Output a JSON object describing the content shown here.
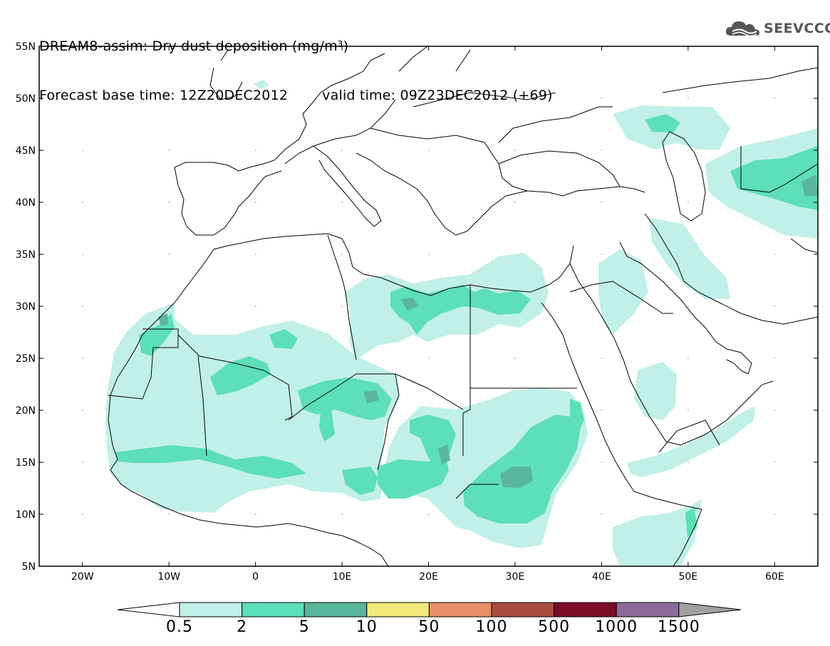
{
  "title": {
    "line1": "DREAM8-assim: Dry dust deposition (mg/m³)",
    "base_time_label": "Forecast base time: 12Z20DEC2012",
    "valid_time_label": "valid time: 09Z23DEC2012 (+69)"
  },
  "logo": {
    "text": "SEEVCCC",
    "icon": "cloud-icon"
  },
  "map": {
    "lat_labels": [
      "55N",
      "50N",
      "45N",
      "40N",
      "35N",
      "30N",
      "25N",
      "20N",
      "15N",
      "10N",
      "5N"
    ],
    "lon_labels": [
      "20W",
      "10W",
      "0",
      "10E",
      "20E",
      "30E",
      "40E",
      "50E",
      "60E"
    ],
    "extent": {
      "lon_min": -25,
      "lon_max": 65,
      "lat_min": 5,
      "lat_max": 55
    }
  },
  "colorbar": {
    "labels": [
      "0.5",
      "2",
      "5",
      "10",
      "50",
      "100",
      "500",
      "1000",
      "1500"
    ],
    "colors": [
      "#c1f0e8",
      "#5ddfb7",
      "#5ab69b",
      "#f3e97a",
      "#e8906a",
      "#a84d40",
      "#7a0e2a",
      "#8e6a9b",
      "#a0a0a0"
    ],
    "under_color": "#ffffff",
    "over_color": "#a0a0a0"
  }
}
